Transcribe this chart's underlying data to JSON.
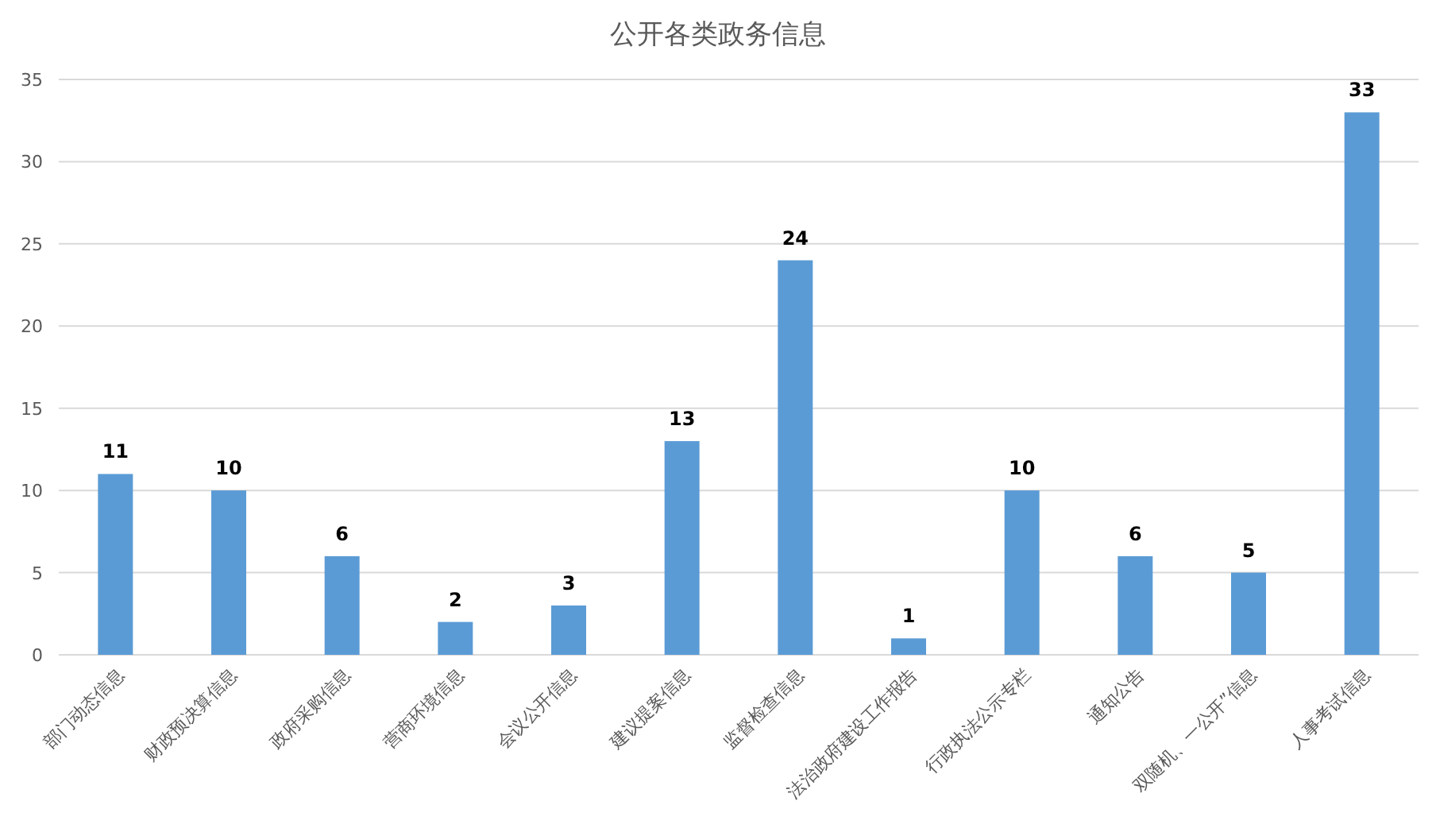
{
  "chart_data": {
    "type": "bar",
    "title": "公开各类政务信息",
    "categories": [
      "部门动态信息",
      "财政预决算信息",
      "政府采购信息",
      "营商环境信息",
      "会议公开信息",
      "建议提案信息",
      "监督检查信息",
      "法治政府建设工作报告",
      "行政执法公示专栏",
      "通知公告",
      "双随机、一公开”信息",
      "人事考试信息"
    ],
    "values": [
      11,
      10,
      6,
      2,
      3,
      13,
      24,
      1,
      10,
      6,
      5,
      33
    ],
    "color": "#5b9bd5",
    "ylim": [
      0,
      35
    ],
    "yticks": [
      0,
      5,
      10,
      15,
      20,
      25,
      30,
      35
    ],
    "grid": "y",
    "data_labels": true
  }
}
